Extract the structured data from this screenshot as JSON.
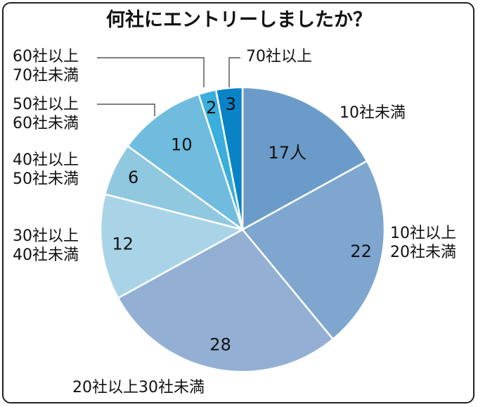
{
  "chart_data": {
    "type": "pie",
    "title": "何社にエントリーしましたか？",
    "start": "top",
    "direction": "clockwise",
    "slices": [
      {
        "label": "10社未満",
        "value": 17,
        "value_label": "17人",
        "color": "#6b9bc9"
      },
      {
        "label": "10社以上\n20社未満",
        "value": 22,
        "value_label": "22",
        "color": "#7ea6cf"
      },
      {
        "label": "20社以上30社未満",
        "value": 28,
        "value_label": "28",
        "color": "#93b0d4"
      },
      {
        "label": "30社以上\n40社未満",
        "value": 12,
        "value_label": "12",
        "color": "#a9d4e8"
      },
      {
        "label": "40社以上\n50社未満",
        "value": 6,
        "value_label": "6",
        "color": "#90c8e0"
      },
      {
        "label": "50社以上\n60社未満",
        "value": 10,
        "value_label": "10",
        "color": "#6fbcdf"
      },
      {
        "label": "60社以上\n70社未満",
        "value": 2,
        "value_label": "2",
        "color": "#3aaedc"
      },
      {
        "label": "70社以上",
        "value": 3,
        "value_label": "3",
        "color": "#0a82c6"
      }
    ]
  }
}
